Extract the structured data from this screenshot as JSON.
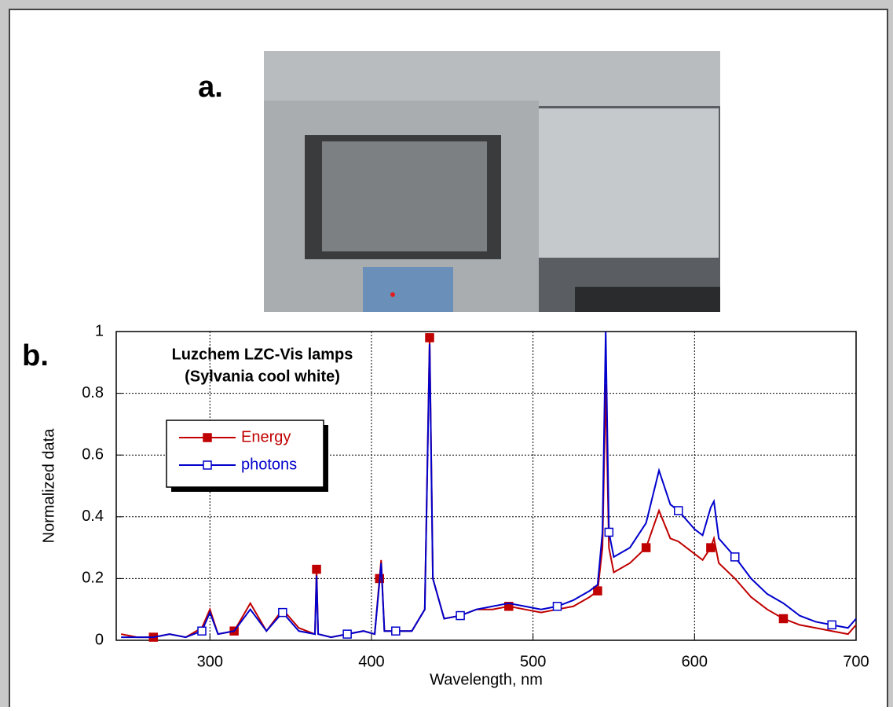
{
  "panel_labels": [
    "a.",
    "b."
  ],
  "chart_data": {
    "type": "line",
    "title": "Luzchem LZC-Vis lamps",
    "subtitle": "(Sylvania cool white)",
    "x_label": "Wavelength, nm",
    "y_label": "Normalized data",
    "x": [
      245,
      255,
      265,
      275,
      285,
      295,
      300,
      305,
      315,
      325,
      335,
      345,
      355,
      365,
      366,
      367,
      375,
      385,
      395,
      402,
      405,
      406,
      408,
      415,
      425,
      433,
      436,
      438,
      445,
      455,
      465,
      475,
      485,
      495,
      505,
      515,
      525,
      535,
      540,
      543,
      545,
      547,
      550,
      560,
      570,
      578,
      585,
      590,
      600,
      605,
      610,
      612,
      615,
      625,
      635,
      645,
      655,
      665,
      675,
      685,
      695,
      700
    ],
    "series": [
      {
        "name": "Energy",
        "color": "#c00000",
        "marker": "filled",
        "values": [
          0.02,
          0.01,
          0.01,
          0.02,
          0.01,
          0.04,
          0.1,
          0.02,
          0.03,
          0.12,
          0.03,
          0.1,
          0.04,
          0.02,
          0.23,
          0.02,
          0.01,
          0.02,
          0.03,
          0.02,
          0.2,
          0.26,
          0.03,
          0.03,
          0.03,
          0.1,
          0.98,
          0.2,
          0.07,
          0.08,
          0.1,
          0.1,
          0.11,
          0.1,
          0.09,
          0.1,
          0.11,
          0.14,
          0.16,
          0.3,
          0.83,
          0.3,
          0.22,
          0.25,
          0.3,
          0.42,
          0.33,
          0.32,
          0.28,
          0.26,
          0.3,
          0.33,
          0.25,
          0.2,
          0.14,
          0.1,
          0.07,
          0.05,
          0.04,
          0.03,
          0.02,
          0.05
        ]
      },
      {
        "name": "photons",
        "color": "#0000cc",
        "marker": "open",
        "values": [
          0.01,
          0.01,
          0.01,
          0.02,
          0.01,
          0.03,
          0.09,
          0.02,
          0.03,
          0.1,
          0.03,
          0.09,
          0.03,
          0.02,
          0.21,
          0.02,
          0.01,
          0.02,
          0.03,
          0.02,
          0.19,
          0.25,
          0.03,
          0.03,
          0.03,
          0.1,
          0.96,
          0.2,
          0.07,
          0.08,
          0.1,
          0.11,
          0.12,
          0.11,
          0.1,
          0.11,
          0.13,
          0.16,
          0.18,
          0.35,
          1.0,
          0.35,
          0.27,
          0.3,
          0.38,
          0.55,
          0.44,
          0.42,
          0.36,
          0.34,
          0.43,
          0.45,
          0.33,
          0.27,
          0.2,
          0.15,
          0.12,
          0.08,
          0.06,
          0.05,
          0.04,
          0.07
        ]
      }
    ],
    "xlim": [
      242,
      700
    ],
    "ylim": [
      0,
      1
    ],
    "xticks": [
      300,
      400,
      500,
      600,
      700
    ],
    "yticks": [
      0,
      0.2,
      0.4,
      0.6,
      0.8,
      1
    ],
    "grid": true
  }
}
